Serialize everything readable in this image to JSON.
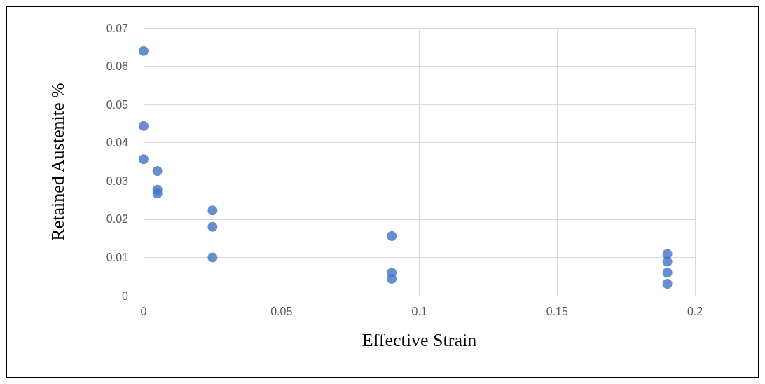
{
  "chart_data": {
    "type": "scatter",
    "xlabel": "Effective Strain",
    "ylabel": "Retained Austenite %",
    "x": [
      0,
      0,
      0,
      0.005,
      0.005,
      0.005,
      0.025,
      0.025,
      0.025,
      0.09,
      0.09,
      0.09,
      0.19,
      0.19,
      0.19,
      0.19
    ],
    "values": [
      0.064,
      0.0444,
      0.0357,
      0.0326,
      0.0277,
      0.0267,
      0.0223,
      0.018,
      0.01,
      0.0156,
      0.006,
      0.0044,
      0.0109,
      0.0089,
      0.006,
      0.0031
    ],
    "color": "#4472c4",
    "marker": "circle",
    "xlim": [
      0,
      0.2
    ],
    "xticks": [
      0,
      0.05,
      0.1,
      0.15,
      0.2
    ],
    "ylim": [
      0,
      0.07
    ],
    "yticks": [
      0,
      0.01,
      0.02,
      0.03,
      0.04,
      0.05,
      0.06,
      0.07
    ],
    "grid": true
  }
}
